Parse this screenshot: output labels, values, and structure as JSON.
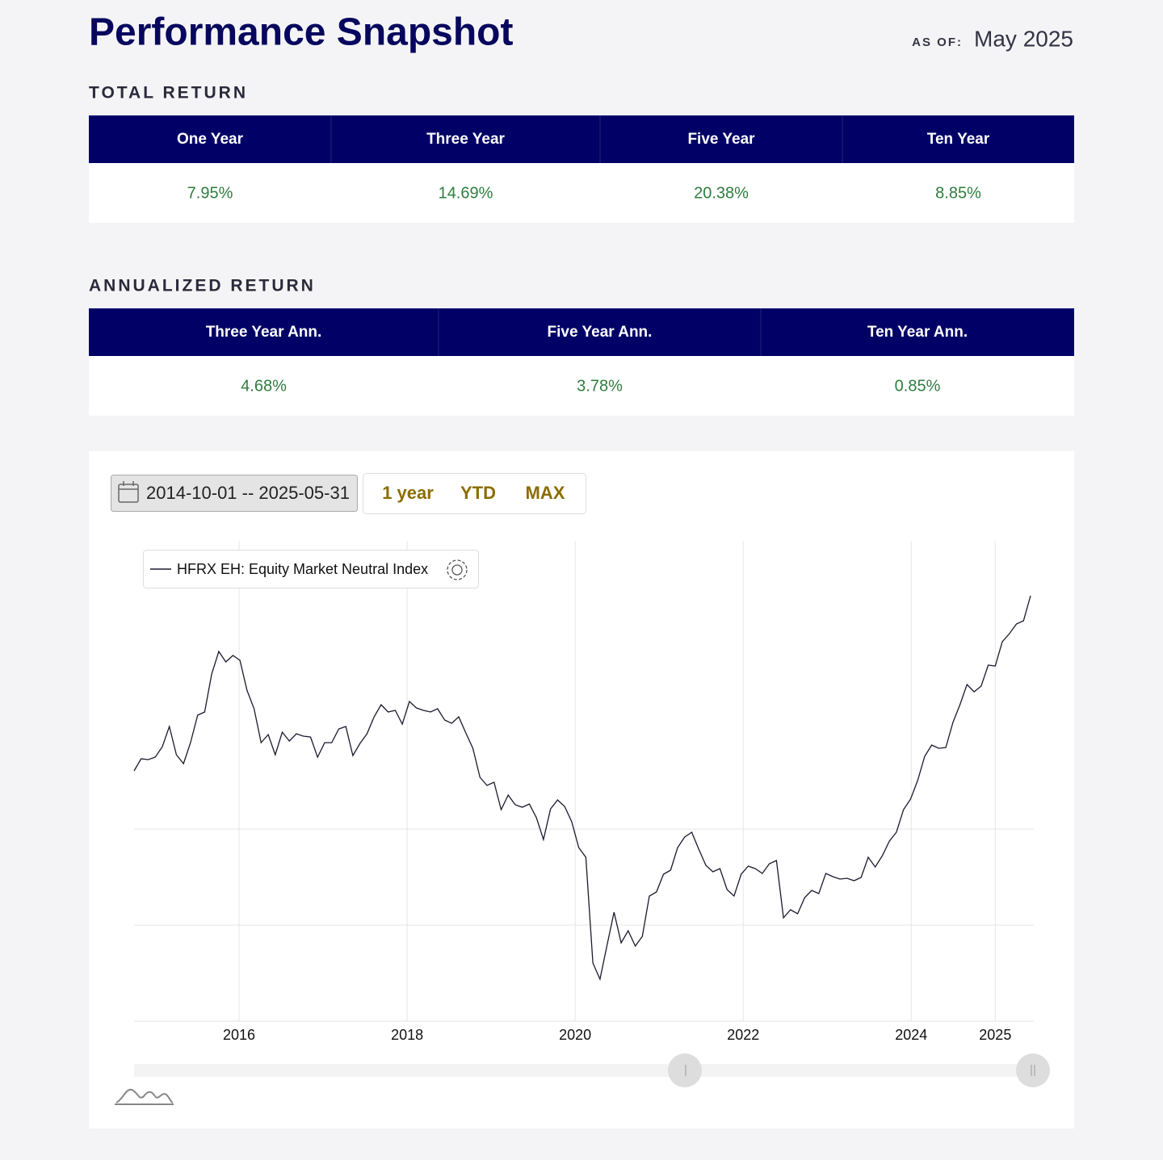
{
  "header": {
    "title": "Performance Snapshot",
    "as_of_label": "AS OF:",
    "as_of": "May 2025"
  },
  "total_return": {
    "title": "TOTAL RETURN",
    "columns": [
      "One Year",
      "Three Year",
      "Five Year",
      "Ten Year"
    ],
    "values": [
      "7.95%",
      "14.69%",
      "20.38%",
      "8.85%"
    ]
  },
  "annualized_return": {
    "title": "ANNUALIZED RETURN",
    "columns": [
      "Three Year Ann.",
      "Five Year Ann.",
      "Ten Year Ann."
    ],
    "values": [
      "4.68%",
      "3.78%",
      "0.85%"
    ]
  },
  "controls": {
    "date_range": "2014-10-01 -- 2025-05-31",
    "buttons": [
      "1 year",
      "YTD",
      "MAX"
    ]
  },
  "chart_data": {
    "type": "line",
    "series": [
      {
        "name": "HFRX EH: Equity Market Neutral Index",
        "color": "#1a1a2e",
        "values": [
          310,
          325,
          324,
          327,
          340,
          365,
          330,
          319,
          345,
          379,
          383,
          430,
          458,
          445,
          453,
          447,
          410,
          387,
          345,
          355,
          330,
          358,
          347,
          356,
          353,
          352,
          327,
          345,
          345,
          362,
          365,
          329,
          344,
          356,
          377,
          392,
          383,
          385,
          368,
          396,
          388,
          385,
          383,
          387,
          373,
          369,
          377,
          357,
          338,
          302,
          292,
          296,
          262,
          280,
          268,
          265,
          269,
          252,
          225,
          263,
          274,
          266,
          247,
          215,
          203,
          72,
          52,
          94,
          135,
          97,
          112,
          93,
          105,
          155,
          160,
          182,
          187,
          215,
          228,
          234,
          213,
          193,
          185,
          189,
          163,
          155,
          182,
          192,
          189,
          183,
          195,
          199,
          128,
          138,
          133,
          153,
          162,
          158,
          183,
          179,
          176,
          177,
          174,
          178,
          203,
          191,
          205,
          223,
          234,
          262,
          275,
          298,
          328,
          342,
          338,
          339,
          370,
          392,
          417,
          408,
          415,
          441,
          440,
          470,
          480,
          492,
          496,
          527
        ]
      }
    ],
    "xlim": [
      2014.75,
      2025.42
    ],
    "xticks": [
      2016,
      2018,
      2020,
      2022,
      2024,
      2025
    ],
    "ylim": [
      0,
      595
    ],
    "ygrid": [
      119,
      238
    ]
  }
}
